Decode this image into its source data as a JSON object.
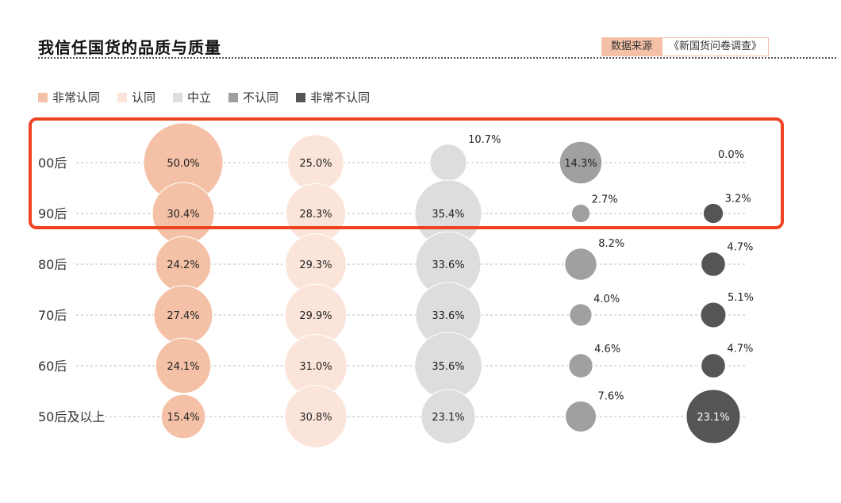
{
  "title": "我信任国货的品质与质量",
  "source": {
    "label": "数据来源",
    "value": "《新国货问卷调查》"
  },
  "legend": [
    {
      "label": "非常认同",
      "color": "#f4c1a6"
    },
    {
      "label": "认同",
      "color": "#fbe5da"
    },
    {
      "label": "中立",
      "color": "#dddddd"
    },
    {
      "label": "不认同",
      "color": "#a0a0a0"
    },
    {
      "label": "非常不认同",
      "color": "#555555"
    }
  ],
  "highlight_color": "#ee4422",
  "chart_data": {
    "type": "bubble",
    "title": "我信任国货的品质与质量",
    "categories": [
      "00后",
      "90后",
      "80后",
      "70后",
      "60后",
      "50后及以上"
    ],
    "series": [
      {
        "name": "非常认同",
        "color": "#f4c1a6",
        "values": [
          50.0,
          30.4,
          24.2,
          27.4,
          24.1,
          15.4
        ]
      },
      {
        "name": "认同",
        "color": "#fbe5da",
        "values": [
          25.0,
          28.3,
          29.3,
          29.9,
          31.0,
          30.8
        ]
      },
      {
        "name": "中立",
        "color": "#dddddd",
        "values": [
          10.7,
          35.4,
          33.6,
          33.6,
          35.6,
          23.1
        ]
      },
      {
        "name": "不认同",
        "color": "#a0a0a0",
        "values": [
          14.3,
          2.7,
          8.2,
          4.0,
          4.6,
          7.6
        ]
      },
      {
        "name": "非常不认同",
        "color": "#555555",
        "values": [
          0.0,
          3.2,
          4.7,
          5.1,
          4.7,
          23.1
        ]
      }
    ],
    "labels": [
      [
        "50.0%",
        "25.0%",
        "10.7%",
        "14.3%",
        "0.0%"
      ],
      [
        "30.4%",
        "28.3%",
        "35.4%",
        "2.7%",
        "3.2%"
      ],
      [
        "24.2%",
        "29.3%",
        "33.6%",
        "8.2%",
        "4.7%"
      ],
      [
        "27.4%",
        "29.9%",
        "33.6%",
        "4.0%",
        "5.1%"
      ],
      [
        "24.1%",
        "31.0%",
        "35.6%",
        "4.6%",
        "4.7%"
      ],
      [
        "15.4%",
        "30.8%",
        "23.1%",
        "7.6%",
        "23.1%"
      ]
    ],
    "unit": "%",
    "grid": "dashed horizontal row lines",
    "legend_position": "top-left",
    "highlighted_rows": [
      "00后",
      "90后"
    ]
  }
}
